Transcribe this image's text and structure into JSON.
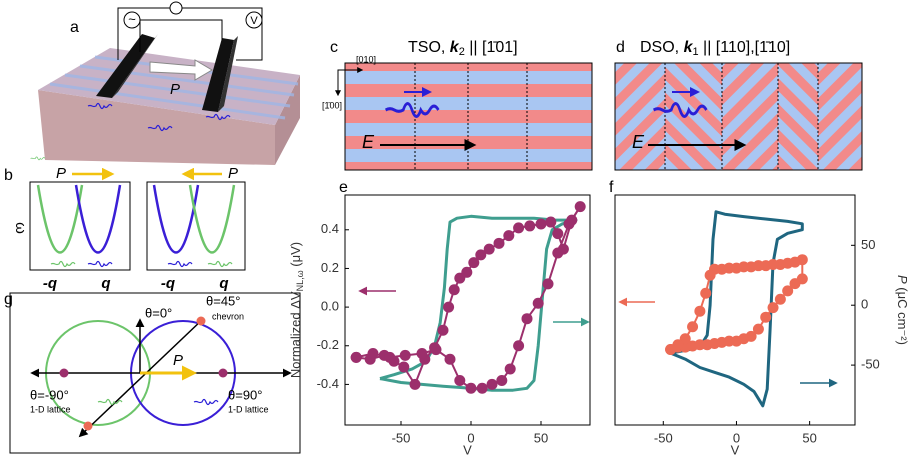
{
  "panels": {
    "a": {
      "label": "a",
      "ac": "~",
      "polarization": "P",
      "voltmeter": "V"
    },
    "b": {
      "label": "b",
      "axis": "ω",
      "polarization": "P",
      "left": {
        "neg": "-q",
        "pos": "q"
      },
      "right": {
        "neg": "-q",
        "pos": "q",
        "polarization": "P"
      }
    },
    "c": {
      "label": "c",
      "title_start": "TSO, ",
      "title_k": "k",
      "title_sub": "2",
      "title_end": " || [1̄01]",
      "axis_x": "[010]",
      "axis_y": "[1̄00]",
      "field": "E"
    },
    "d": {
      "label": "d",
      "title_start": "DSO, ",
      "title_k": "k",
      "title_sub": "1",
      "title_end": " || [110],[1̄10]",
      "field": "E"
    },
    "g": {
      "label": "g",
      "top": "θ=0°",
      "diag": "θ=45°",
      "diag_note": "chevron",
      "left": "θ=-90°",
      "left_note": "1-D lattice",
      "right": "θ=90°",
      "right_note": "1-D lattice",
      "polarization": "P"
    }
  },
  "chart_data": [
    {
      "type": "line",
      "label": "e",
      "ylabel": "Normalized ΔV",
      "ylabel_sub": "NL,ω",
      "ylabel_unit": " (μV)",
      "xlabel": "V",
      "xlim": [
        -90,
        85
      ],
      "ylim": [
        -0.61,
        0.58
      ],
      "xticks": [
        -50,
        0,
        50
      ],
      "yticks": [
        0.4,
        0.2,
        {
          "value": 0,
          "label": "0.0"
        },
        -0.2,
        -0.4
      ],
      "series": [
        {
          "color": "#3f9e8f",
          "marker": "none",
          "x": [
            -65,
            -50,
            -35,
            -20,
            0,
            15,
            30,
            40,
            45,
            48,
            51,
            54,
            58,
            65,
            75,
            60,
            45,
            30,
            15,
            0,
            -10,
            -15,
            -17,
            -19,
            -22,
            -26,
            -32,
            -42,
            -55,
            -65
          ],
          "values": [
            -0.37,
            -0.39,
            -0.4,
            -0.41,
            -0.42,
            -0.43,
            -0.43,
            -0.42,
            -0.38,
            -0.2,
            0.05,
            0.3,
            0.4,
            0.43,
            0.45,
            0.45,
            0.46,
            0.46,
            0.46,
            0.47,
            0.46,
            0.44,
            0.3,
            0.1,
            -0.08,
            -0.2,
            -0.28,
            -0.32,
            -0.35,
            -0.37
          ]
        },
        {
          "color": "#9c2f6c",
          "marker": "circle",
          "x": [
            -82,
            -72,
            -62,
            -55,
            -48,
            -40,
            -33,
            -26,
            -20,
            -16,
            -12,
            -8,
            -3,
            2,
            7,
            13,
            20,
            27,
            34,
            42,
            50,
            57,
            62,
            66,
            72,
            78,
            70,
            62,
            55,
            48,
            40,
            34,
            28,
            22,
            15,
            8,
            0,
            -8,
            -15,
            -25,
            -35,
            -47,
            -58,
            -70,
            -82
          ],
          "values": [
            -0.26,
            -0.27,
            -0.25,
            -0.28,
            -0.31,
            -0.4,
            -0.27,
            -0.21,
            -0.12,
            0,
            0.09,
            0.15,
            0.18,
            0.23,
            0.27,
            0.3,
            0.33,
            0.37,
            0.41,
            0.42,
            0.43,
            0.44,
            0.38,
            0.3,
            0.45,
            0.52,
            0.43,
            0.28,
            0.12,
            0.02,
            -0.06,
            -0.2,
            -0.32,
            -0.38,
            -0.4,
            -0.42,
            -0.42,
            -0.38,
            -0.27,
            -0.22,
            -0.24,
            -0.25,
            -0.26,
            -0.24,
            -0.26
          ]
        }
      ]
    },
    {
      "type": "line",
      "label": "f",
      "xlabel": "V",
      "y2label": "P",
      "y2label_unit": " (μC cm⁻²)",
      "xlim": [
        -83,
        81
      ],
      "y2lim": [
        -100,
        92
      ],
      "xticks": [
        -50,
        0,
        50
      ],
      "y2ticks": [
        50,
        0,
        -50
      ],
      "series": [
        {
          "color": "#1f6680",
          "marker": "none",
          "axis": "y2",
          "x": [
            -45,
            -35,
            -25,
            -15,
            -5,
            5,
            12,
            18,
            21,
            23,
            25,
            28,
            35,
            45,
            45,
            35,
            20,
            5,
            -8,
            -14,
            -16,
            -18,
            -20,
            -24,
            -32,
            -45
          ],
          "values": [
            -40,
            -45,
            -52,
            -56,
            -60,
            -66,
            -72,
            -84,
            -70,
            -20,
            35,
            55,
            60,
            63,
            68,
            70,
            72,
            74,
            76,
            78,
            55,
            0,
            -25,
            -33,
            -37,
            -40
          ]
        },
        {
          "color": "#ec6a55",
          "marker": "circle",
          "axis": "y2",
          "x": [
            -45,
            -40,
            -35,
            -30,
            -25,
            -20,
            -15,
            -10,
            -5,
            0,
            5,
            10,
            15,
            20,
            25,
            30,
            35,
            40,
            45,
            45,
            40,
            35,
            30,
            25,
            20,
            15,
            10,
            5,
            0,
            -5,
            -10,
            -15,
            -18,
            -21,
            -25,
            -30,
            -35,
            -40,
            -45
          ],
          "values": [
            -37,
            -35,
            -35,
            -34,
            -33,
            -33,
            -32,
            -31,
            -30,
            -30,
            -28,
            -26,
            -20,
            -10,
            -2,
            5,
            12,
            18,
            22,
            38,
            36,
            35,
            34,
            34,
            33,
            33,
            32,
            32,
            31,
            31,
            30,
            30,
            25,
            10,
            -5,
            -18,
            -28,
            -33,
            -37
          ]
        }
      ]
    }
  ]
}
